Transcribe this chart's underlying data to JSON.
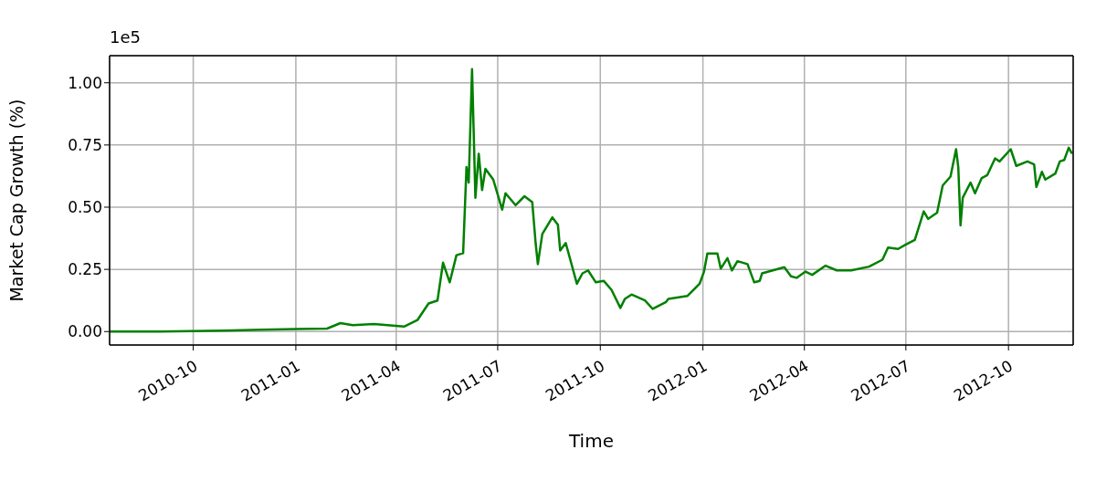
{
  "chart_data": {
    "type": "line",
    "xlabel": "Time",
    "ylabel": "Market Cap Growth (%)",
    "annotations": [
      "1e5"
    ],
    "xlim": [
      "2010-07-18",
      "2012-11-28"
    ],
    "xticks": [
      "2010-10",
      "2011-01",
      "2011-04",
      "2011-07",
      "2011-10",
      "2012-01",
      "2012-04",
      "2012-07",
      "2012-10"
    ],
    "ylim": [
      -0.054,
      1.109
    ],
    "yticks": [
      {
        "value": 0,
        "label": "0.00"
      },
      0.25,
      {
        "value": 0.5,
        "label": "0.50"
      },
      0.75,
      {
        "value": 1,
        "label": "1.00"
      }
    ],
    "grid": true,
    "marker": "none",
    "line_style": "solid",
    "x": [
      "2010-07-18",
      "2010-09-01",
      "2010-10-27",
      "2010-12-01",
      "2011-01-01",
      "2011-01-29",
      "2011-02-10",
      "2011-02-21",
      "2011-03-12",
      "2011-04-08",
      "2011-04-20",
      "2011-04-30",
      "2011-05-08",
      "2011-05-13",
      "2011-05-19",
      "2011-05-25",
      "2011-05-31",
      "2011-06-03",
      "2011-06-05",
      "2011-06-08",
      "2011-06-11",
      "2011-06-14",
      "2011-06-17",
      "2011-06-20",
      "2011-06-27",
      "2011-07-05",
      "2011-07-08",
      "2011-07-17",
      "2011-07-25",
      "2011-08-01",
      "2011-08-04",
      "2011-08-06",
      "2011-08-10",
      "2011-08-19",
      "2011-08-24",
      "2011-08-26",
      "2011-08-31",
      "2011-09-10",
      "2011-09-15",
      "2011-09-20",
      "2011-09-27",
      "2011-10-04",
      "2011-10-11",
      "2011-10-19",
      "2011-10-23",
      "2011-10-29",
      "2011-11-10",
      "2011-11-17",
      "2011-11-29",
      "2011-12-01",
      "2011-12-18",
      "2011-12-29",
      "2012-01-02",
      "2012-01-05",
      "2012-01-14",
      "2012-01-17",
      "2012-01-23",
      "2012-01-27",
      "2012-02-01",
      "2012-02-10",
      "2012-02-16",
      "2012-02-21",
      "2012-02-23",
      "2012-03-14",
      "2012-03-20",
      "2012-03-25",
      "2012-04-02",
      "2012-04-08",
      "2012-04-20",
      "2012-04-30",
      "2012-05-13",
      "2012-05-29",
      "2012-06-10",
      "2012-06-15",
      "2012-06-24",
      "2012-07-01",
      "2012-07-09",
      "2012-07-17",
      "2012-07-21",
      "2012-07-29",
      "2012-08-03",
      "2012-08-10",
      "2012-08-15",
      "2012-08-17",
      "2012-08-19",
      "2012-08-21",
      "2012-08-28",
      "2012-09-01",
      "2012-09-07",
      "2012-09-12",
      "2012-09-19",
      "2012-09-23",
      "2012-10-03",
      "2012-10-08",
      "2012-10-18",
      "2012-10-24",
      "2012-10-26",
      "2012-10-31",
      "2012-11-03",
      "2012-11-12",
      "2012-11-16",
      "2012-11-20",
      "2012-11-24",
      "2012-11-27"
    ],
    "series": [
      {
        "color": "#008000",
        "values": [
          0,
          0,
          0.004,
          0.007,
          0.01,
          0.012,
          0.034,
          0.026,
          0.03,
          0.02,
          0.046,
          0.113,
          0.125,
          0.277,
          0.198,
          0.307,
          0.315,
          0.661,
          0.599,
          1.055,
          0.538,
          0.715,
          0.569,
          0.654,
          0.611,
          0.49,
          0.556,
          0.508,
          0.544,
          0.52,
          0.356,
          0.271,
          0.392,
          0.459,
          0.429,
          0.326,
          0.356,
          0.192,
          0.234,
          0.246,
          0.198,
          0.204,
          0.168,
          0.095,
          0.131,
          0.149,
          0.125,
          0.091,
          0.119,
          0.131,
          0.143,
          0.192,
          0.241,
          0.314,
          0.314,
          0.253,
          0.295,
          0.246,
          0.283,
          0.271,
          0.198,
          0.204,
          0.234,
          0.259,
          0.222,
          0.216,
          0.241,
          0.228,
          0.265,
          0.246,
          0.246,
          0.261,
          0.289,
          0.338,
          0.332,
          0.35,
          0.368,
          0.483,
          0.453,
          0.478,
          0.587,
          0.623,
          0.733,
          0.66,
          0.427,
          0.538,
          0.599,
          0.556,
          0.617,
          0.629,
          0.696,
          0.684,
          0.733,
          0.666,
          0.684,
          0.672,
          0.581,
          0.642,
          0.611,
          0.635,
          0.684,
          0.69,
          0.739,
          0.715
        ]
      }
    ]
  }
}
